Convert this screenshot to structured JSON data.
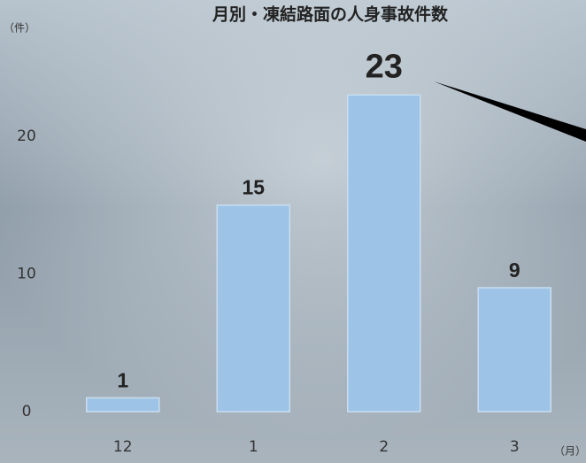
{
  "chart_data": {
    "type": "bar",
    "title": "月別・凍結路面の人身事故件数",
    "y_unit": "（件）",
    "x_unit": "（月）",
    "categories": [
      "12",
      "1",
      "2",
      "3"
    ],
    "values": [
      1,
      15,
      23,
      9
    ],
    "color": "#9dc3e6",
    "ylim": [
      0,
      27
    ],
    "yticks": [
      0,
      10,
      20
    ]
  }
}
